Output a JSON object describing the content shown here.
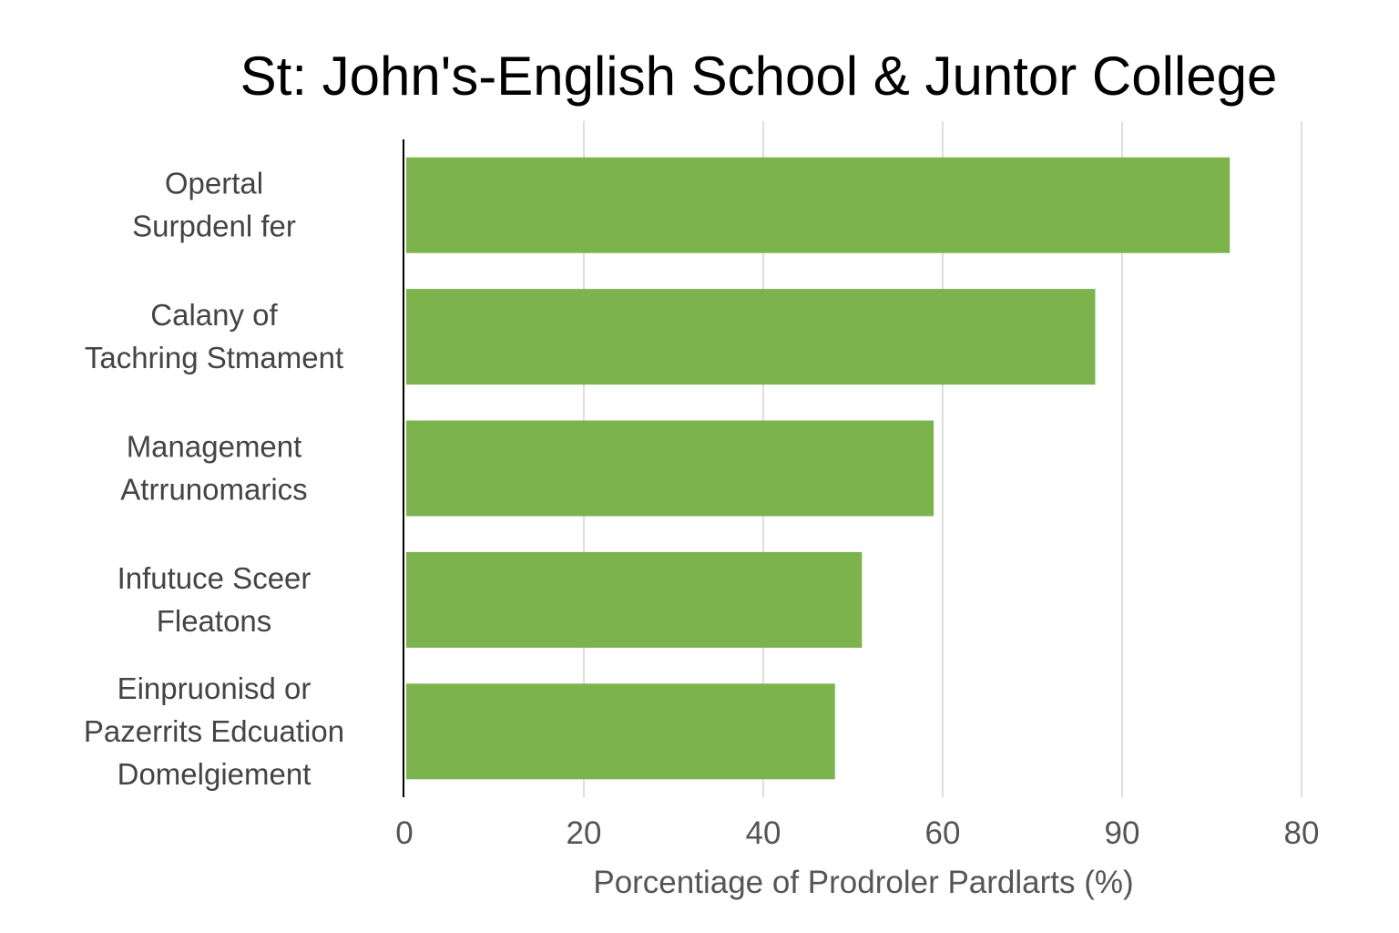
{
  "chart_data": {
    "type": "bar",
    "orientation": "horizontal",
    "title": "St: John's-English School & Juntor College",
    "xlabel": "Porcentiage of Prodroler Pardlarts (%)",
    "ylabel": "",
    "categories": [
      [
        "Opertal",
        "Surpdenl fer"
      ],
      [
        "Calany of",
        "Tachring Stmament"
      ],
      [
        "Management",
        "Atrrunomarics"
      ],
      [
        "Infutuce Sceer",
        "Fleatons"
      ],
      [
        "Einpruonisd or",
        "Pazerrits Edcuation",
        "Domelgiement"
      ]
    ],
    "values": [
      92,
      77,
      59,
      51,
      48
    ],
    "x_ticks": [
      "0",
      "20",
      "40",
      "60",
      "90",
      "80"
    ],
    "xlim": [
      0,
      100
    ],
    "grid": true,
    "legend": "none",
    "bar_color": "#7cb34d",
    "axis_color": "#000000",
    "grid_color": "#d4d4d4"
  }
}
